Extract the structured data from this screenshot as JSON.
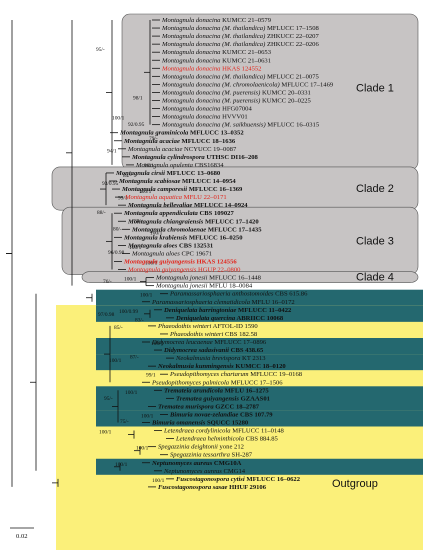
{
  "colors": {
    "clade_bg": "#c7c4c4",
    "outgroup_bg": "#fbf07a",
    "teal": "#24686f",
    "red_label": "#e2231a"
  },
  "clades": [
    "Clade 1",
    "Clade 2",
    "Clade 3",
    "Clade 4",
    "Outgroup"
  ],
  "scale_label": "0.02",
  "taxa": [
    {
      "sp": "Montagnula donacina",
      "st": "KUMCC 21–0579",
      "b": false,
      "r": false
    },
    {
      "sp": "Montagnula donacina (M. thailandica)",
      "st": "MFLUCC 17–1508",
      "b": false,
      "r": false
    },
    {
      "sp": "Montagnula donacina (M. thailandica)",
      "st": "ZHKUCC 22–0207",
      "b": false,
      "r": false
    },
    {
      "sp": "Montagnula donacina (M. thailandica)",
      "st": "ZHKUCC 22–0206",
      "b": false,
      "r": false
    },
    {
      "sp": "Montagnula donacina",
      "st": "KUMCC 21–0653",
      "b": false,
      "r": false
    },
    {
      "sp": "Montagnula donacina",
      "st": "KUMCC 21–0631",
      "b": false,
      "r": false
    },
    {
      "sp": "Montagnula donacina",
      "st": "HKAS 124552",
      "b": false,
      "r": true
    },
    {
      "sp": "Montagnula donacina (M. thailandica)",
      "st": "MFLUCC 21–0075",
      "b": false,
      "r": false
    },
    {
      "sp": "Montagnula donacina (M. chromolaenicola)",
      "st": "MFLUCC 17–1469",
      "b": false,
      "r": false
    },
    {
      "sp": "Montagnula donacina (M. puerensis)",
      "st": "KUMCC 20–0331",
      "b": false,
      "r": false
    },
    {
      "sp": "Montagnula donacina (M. puerensis)",
      "st": "KUMCC 20–0225",
      "b": false,
      "r": false
    },
    {
      "sp": "Montagnula donacina",
      "st": "HFG07004",
      "b": false,
      "r": false
    },
    {
      "sp": "Montagnula donacina",
      "st": "HVVV01",
      "b": false,
      "r": false
    },
    {
      "sp": "Montagnula donacina (M. saikhuensis)",
      "st": "MFLUCC 16–0315",
      "b": false,
      "r": false
    },
    {
      "sp": "Montagnula graminicola",
      "st": "MFLUCC 13–0352",
      "b": true,
      "r": false
    },
    {
      "sp": "Montagnula acaciae",
      "st": "MFLUCC 18–1636",
      "b": true,
      "r": false
    },
    {
      "sp": "Montagnula acaciae",
      "st": "NCYUCC 19–0087",
      "b": false,
      "r": false
    },
    {
      "sp": "Montagnula cylindrospora",
      "st": "UTHSC DI16–208",
      "b": true,
      "r": false
    },
    {
      "sp": "Montagnula opulenta",
      "st": "CBS16834",
      "b": false,
      "r": false
    },
    {
      "sp": "Montagnula cirsii",
      "st": "MFLUCC 13–0680",
      "b": true,
      "r": false
    },
    {
      "sp": "Montagnula scabiosae",
      "st": "MFLUCC 14–0954",
      "b": true,
      "r": false
    },
    {
      "sp": "Montagnula camporesii",
      "st": "MFLUCC 16–1369",
      "b": true,
      "r": false
    },
    {
      "sp": "Montagnula aquatica",
      "st": "MFLU 22–0171",
      "b": false,
      "r": true
    },
    {
      "sp": "Montagnula bellevaliae",
      "st": "MFLUCC 14–0924",
      "b": true,
      "r": false
    },
    {
      "sp": "Montagnula appendiculata",
      "st": "CBS 109027",
      "b": true,
      "r": false
    },
    {
      "sp": "Montagnula chiangraiensis",
      "st": "MFLUCC 17–1420",
      "b": true,
      "r": false
    },
    {
      "sp": "Montagnula chromolaenae",
      "st": "MFLUCC 17–1435",
      "b": true,
      "r": false
    },
    {
      "sp": "Montagnula krabiensis",
      "st": "MFLUCC 16–0250",
      "b": true,
      "r": false
    },
    {
      "sp": "Montagnula aloes",
      "st": "CBS 132531",
      "b": true,
      "r": false
    },
    {
      "sp": "Montagnula aloes",
      "st": "CPC 19671",
      "b": false,
      "r": false
    },
    {
      "sp": "Montagnula guiyangensis",
      "st": "HKAS 124556",
      "b": true,
      "r": true
    },
    {
      "sp": "Montagnula guiyangensis",
      "st": "HGUP 22–0800",
      "b": false,
      "r": true
    },
    {
      "sp": "Montagnula jonesii",
      "st": "MFLUCC 16–1448",
      "b": false,
      "r": false
    },
    {
      "sp": "Montagnula jonesii",
      "st": "MFLU 18–0084",
      "b": false,
      "r": false
    },
    {
      "sp": "Paramassariosphaeria anthostomoides",
      "st": "CBS 615.86",
      "b": false,
      "r": false
    },
    {
      "sp": "Paramassariosphaeria clematidicola",
      "st": "MFLU 16–0172",
      "b": false,
      "r": false
    },
    {
      "sp": "Deniquelata barringtoniae",
      "st": "MFLUCC 11–0422",
      "b": true,
      "r": false
    },
    {
      "sp": "Deniquelata quercina",
      "st": "ABRIICC 10068",
      "b": true,
      "r": false
    },
    {
      "sp": "Phaeodothis winteri",
      "st": "AFTOL-ID 1590",
      "b": false,
      "r": false
    },
    {
      "sp": "Phaeodothis winteri",
      "st": "CBS 182.58",
      "b": false,
      "r": false
    },
    {
      "sp": "Didymocrea leucaenae",
      "st": "MFLUCC 17–0896",
      "b": false,
      "r": false
    },
    {
      "sp": "Didymocrea sadasivanii",
      "st": "CBS 438.65",
      "b": true,
      "r": false
    },
    {
      "sp": "Neokalmusia brevispora",
      "st": "KT 2313",
      "b": false,
      "r": false
    },
    {
      "sp": "Neokalmusia kunmingensis",
      "st": "KUMCC 18–0120",
      "b": true,
      "r": false
    },
    {
      "sp": "Pseudopithomyces chartarum",
      "st": "MFLUCC 19–0168",
      "b": false,
      "r": false
    },
    {
      "sp": "Pseudopithomyces palmicola",
      "st": "MFLUCC 17–1506",
      "b": false,
      "r": false
    },
    {
      "sp": "Tremateia arundicola",
      "st": "MFLU 16–1275",
      "b": true,
      "r": false
    },
    {
      "sp": "Trematea guiyangensis",
      "st": "GZAAS01",
      "b": true,
      "r": false
    },
    {
      "sp": "Trematea murispora",
      "st": "GZCC 18–2787",
      "b": true,
      "r": false
    },
    {
      "sp": "Bimuria novae-zelandiae",
      "st": "CBS 107.79",
      "b": true,
      "r": false
    },
    {
      "sp": "Bimuria omanensis",
      "st": "SQUCC 15280",
      "b": true,
      "r": false
    },
    {
      "sp": "Letendraea cordylinicola",
      "st": "MFLUCC 11–0148",
      "b": false,
      "r": false
    },
    {
      "sp": "Letendraea helminthicola",
      "st": "CBS 884.85",
      "b": false,
      "r": false
    },
    {
      "sp": "Spegazzinia deightonii",
      "st": "yone 212",
      "b": false,
      "r": false
    },
    {
      "sp": "Spegazzinia tessarthra",
      "st": "SH-287",
      "b": false,
      "r": false
    },
    {
      "sp": "Neptunomyces aureus",
      "st": "CMG10A",
      "b": true,
      "r": false
    },
    {
      "sp": "Neptunomyces aureus",
      "st": "CMG14",
      "b": false,
      "r": false
    },
    {
      "sp": "Fuscostagonospora cytisi",
      "st": "MFLUCC 16–0622",
      "b": true,
      "r": false
    },
    {
      "sp": "Fuscostagonospora sasae",
      "st": "HHUF 29106",
      "b": true,
      "r": false
    }
  ],
  "supports": [
    {
      "t": "95/-",
      "row": 4
    },
    {
      "t": "98/1",
      "row": 10
    },
    {
      "t": "100/1",
      "row": 12.5
    },
    {
      "t": "79/-",
      "row": 15
    },
    {
      "t": "92/0.95",
      "row": 13.3
    },
    {
      "t": "94/1",
      "row": 16.6
    },
    {
      "t": "98/1",
      "row": 18.4
    },
    {
      "t": "84/-",
      "row": 19.6
    },
    {
      "t": "93/0.95",
      "row": 20.6
    },
    {
      "t": "100/1",
      "row": 21.6
    },
    {
      "t": "99/1",
      "row": 22.4
    },
    {
      "t": "88/-",
      "row": 24.2
    },
    {
      "t": "88/-",
      "row": 25.3
    },
    {
      "t": "80/-",
      "row": 26.3
    },
    {
      "t": "100/1",
      "row": 26.8
    },
    {
      "t": "100/1",
      "row": 28.6
    },
    {
      "t": "96/0.98",
      "row": 29.2
    },
    {
      "t": "100/1",
      "row": 30.5
    },
    {
      "t": "100/1",
      "row": 32.5
    },
    {
      "t": "76/-",
      "row": 32.8
    },
    {
      "t": "100/1",
      "row": 34.5
    },
    {
      "t": "100/0.99",
      "row": 36.5
    },
    {
      "t": "97/0.98",
      "row": 36.9
    },
    {
      "t": "83/-",
      "row": 37.6
    },
    {
      "t": "85/-",
      "row": 38.5
    },
    {
      "t": "100/1",
      "row": 40.5
    },
    {
      "t": "87/-",
      "row": 42.2
    },
    {
      "t": "100/1",
      "row": 42.6
    },
    {
      "t": "99/1",
      "row": 44.4
    },
    {
      "t": "100/1",
      "row": 46.6
    },
    {
      "t": "95/-",
      "row": 47.3
    },
    {
      "t": "100/1",
      "row": 49.5
    },
    {
      "t": "75/-",
      "row": 50.2
    },
    {
      "t": "100/1",
      "row": 51.5
    },
    {
      "t": "100/1",
      "row": 53.5
    },
    {
      "t": "100/1",
      "row": 55.5
    },
    {
      "t": "100/1",
      "row": 57.5
    }
  ]
}
